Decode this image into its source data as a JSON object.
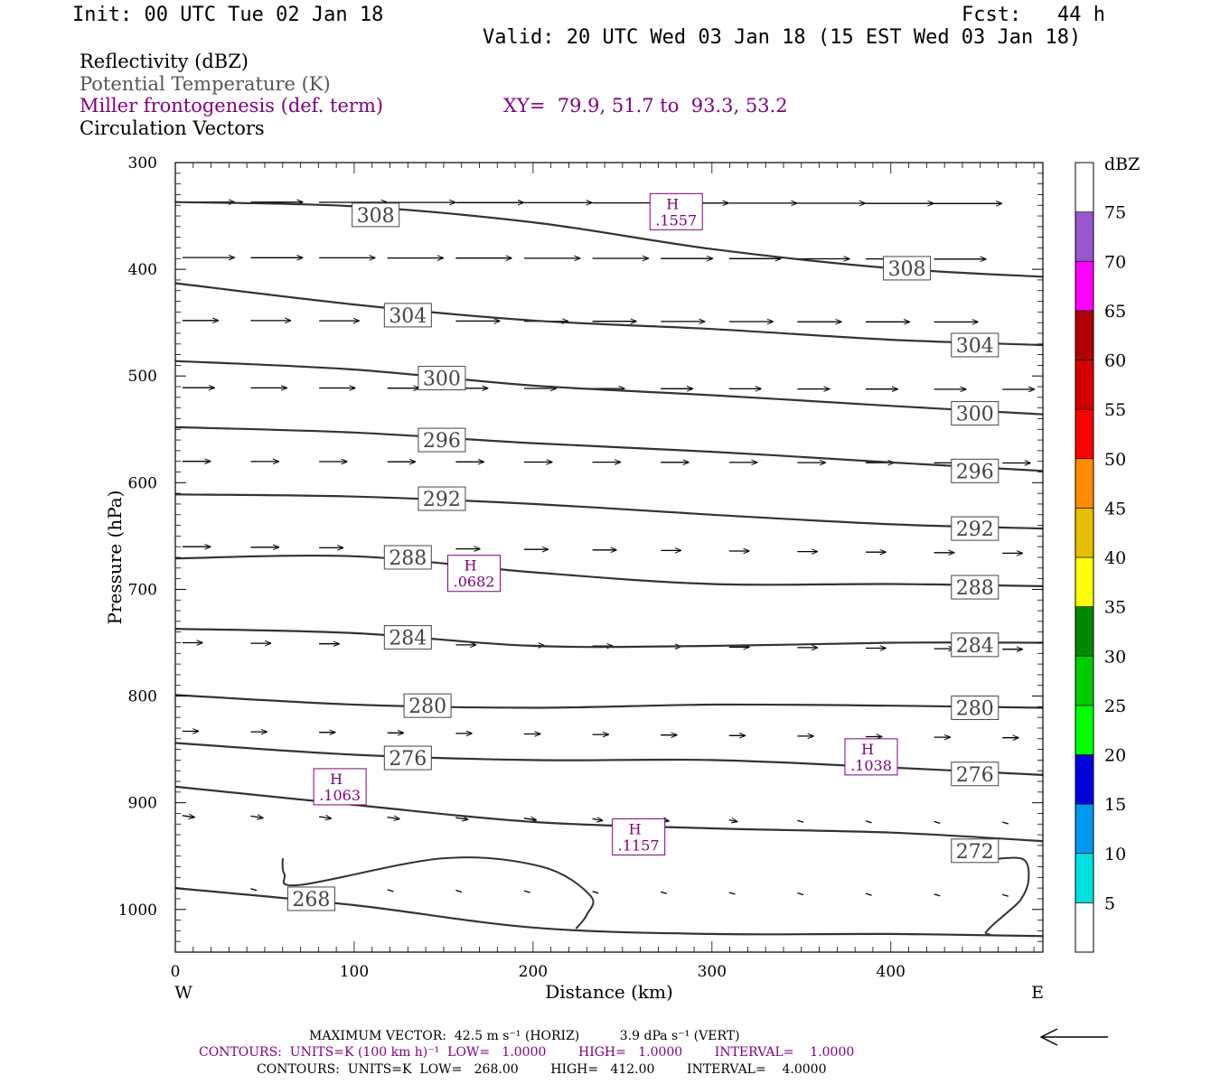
{
  "header": {
    "init": "Init: 00 UTC Tue 02 Jan 18",
    "fcst": "Fcst:   44 h",
    "valid": "Valid: 20 UTC Wed 03 Jan 18 (15 EST Wed 03 Jan 18)"
  },
  "legend": {
    "line1": "Reflectivity (dBZ)",
    "line2": "Potential Temperature (K)",
    "line3": "Miller frontogenesis (def. term)",
    "xy": "XY=  79.9, 51.7 to  93.3, 53.2",
    "line4": "Circulation Vectors"
  },
  "colors": {
    "theta": "#333333",
    "purple": "#800080",
    "colorbar": [
      "#ffffff",
      "#00e0e0",
      "#0099ee",
      "#0000dd",
      "#00ff00",
      "#00cc00",
      "#008800",
      "#ffff00",
      "#e6bf00",
      "#ff8c00",
      "#ff0000",
      "#d40000",
      "#b00000",
      "#ff00ff",
      "#9955cc",
      "#ffffff"
    ]
  },
  "footer": {
    "max_vector": "MAXIMUM VECTOR:  42.5 m s⁻¹ (HORIZ)          3.9 dPa s⁻¹ (VERT)",
    "contours1": "CONTOURS:  UNITS=K (100 km h)⁻¹  LOW=   1.0000        HIGH=   1.0000        INTERVAL=    1.0000",
    "contours2": "CONTOURS:  UNITS=K  LOW=   268.00        HIGH=   412.00        INTERVAL=    4.0000"
  },
  "chart_data": {
    "type": "line",
    "xlabel": "Distance (km)",
    "ylabel": "Pressure (hPa)",
    "xlim": [
      0,
      485
    ],
    "ylim": [
      1040,
      300
    ],
    "x_ticks": [
      0,
      100,
      200,
      300,
      400
    ],
    "y_ticks": [
      300,
      400,
      500,
      600,
      700,
      800,
      900,
      1000
    ],
    "x_end_labels": {
      "left": "W",
      "right": "E"
    },
    "theta_contours": [
      {
        "label": "308",
        "x": [
          0,
          100,
          200,
          300,
          400,
          485
        ],
        "p": [
          337,
          341,
          356,
          381,
          399,
          407
        ],
        "label_at": [
          [
            112,
            349
          ],
          [
            409,
            399
          ]
        ]
      },
      {
        "label": "304",
        "x": [
          0,
          100,
          200,
          300,
          400,
          485
        ],
        "p": [
          413,
          433,
          448,
          456,
          466,
          471
        ],
        "label_at": [
          [
            130,
            443
          ],
          [
            447,
            471
          ]
        ]
      },
      {
        "label": "300",
        "x": [
          0,
          100,
          200,
          300,
          400,
          485
        ],
        "p": [
          486,
          494,
          509,
          518,
          528,
          536
        ],
        "label_at": [
          [
            149,
            502
          ],
          [
            447,
            535
          ]
        ]
      },
      {
        "label": "296",
        "x": [
          0,
          100,
          200,
          300,
          400,
          485
        ],
        "p": [
          548,
          553,
          563,
          571,
          581,
          589
        ],
        "label_at": [
          [
            149,
            560
          ],
          [
            447,
            589
          ]
        ]
      },
      {
        "label": "292",
        "x": [
          0,
          100,
          200,
          300,
          400,
          485
        ],
        "p": [
          611,
          613,
          620,
          630,
          639,
          643
        ],
        "label_at": [
          [
            149,
            615
          ],
          [
            447,
            643
          ]
        ]
      },
      {
        "label": "288",
        "x": [
          0,
          100,
          200,
          300,
          400,
          485
        ],
        "p": [
          671,
          669,
          684,
          695,
          695,
          697
        ],
        "label_at": [
          [
            130,
            670
          ],
          [
            447,
            698
          ]
        ]
      },
      {
        "label": "284",
        "x": [
          0,
          100,
          200,
          300,
          400,
          485
        ],
        "p": [
          737,
          741,
          753,
          753,
          750,
          750
        ],
        "label_at": [
          [
            130,
            745
          ],
          [
            447,
            752
          ]
        ]
      },
      {
        "label": "280",
        "x": [
          0,
          100,
          200,
          300,
          400,
          485
        ],
        "p": [
          799,
          808,
          811,
          808,
          809,
          811
        ],
        "label_at": [
          [
            141,
            809
          ],
          [
            447,
            811
          ]
        ]
      },
      {
        "label": "276",
        "x": [
          0,
          100,
          200,
          300,
          400,
          485
        ],
        "p": [
          844,
          855,
          860,
          860,
          867,
          874
        ],
        "label_at": [
          [
            130,
            858
          ],
          [
            447,
            873
          ]
        ]
      },
      {
        "label": "272",
        "x": [
          0,
          100,
          200,
          300,
          400,
          485
        ],
        "p": [
          885,
          902,
          918,
          924,
          928,
          936
        ],
        "label_at": [
          [
            447,
            945
          ]
        ]
      },
      {
        "label": "268",
        "x": [
          0,
          100,
          200,
          300,
          400,
          485
        ],
        "p": [
          980,
          996,
          1017,
          1023,
          1023,
          1025
        ],
        "label_at": [
          [
            76,
            990
          ]
        ]
      }
    ],
    "frontogenesis_contours": [
      {
        "x": [
          60,
          61,
          70,
          150,
          205,
          232,
          230,
          224
        ],
        "p": [
          952,
          967,
          977,
          952,
          960,
          987,
          1005,
          1018
        ]
      },
      {
        "x": [
          456,
          474,
          477,
          473,
          465,
          458,
          455,
          453,
          456
        ],
        "p": [
          953,
          953,
          972,
          990,
          1003,
          1013,
          1018,
          1022,
          1024
        ]
      }
    ],
    "highs": [
      {
        "label": "H",
        "value": ".1557",
        "x": 280,
        "p": 346
      },
      {
        "label": "H",
        "value": ".0682",
        "x": 167,
        "p": 685
      },
      {
        "label": "H",
        "value": ".1038",
        "x": 389,
        "p": 857
      },
      {
        "label": "H",
        "value": ".1063",
        "x": 92,
        "p": 885
      },
      {
        "label": "H",
        "value": ".1157",
        "x": 259,
        "p": 932
      }
    ],
    "vector_rows": [
      {
        "p": 337,
        "dx": [
          26,
          26,
          34,
          34,
          34,
          34,
          34,
          34,
          34,
          34,
          34,
          34,
          34
        ]
      },
      {
        "p": 389,
        "dx": [
          26,
          26,
          28,
          28,
          28,
          28,
          28,
          26,
          26,
          26,
          26,
          26,
          26
        ]
      },
      {
        "p": 448,
        "dx": [
          18,
          20,
          20,
          22,
          22,
          22,
          22,
          22,
          22,
          22,
          22,
          22,
          22
        ]
      },
      {
        "p": 511,
        "dx": [
          16,
          18,
          18,
          16,
          16,
          16,
          16,
          16,
          16,
          16,
          16,
          16,
          16
        ]
      },
      {
        "p": 580,
        "dx": [
          14,
          14,
          14,
          14,
          14,
          14,
          14,
          14,
          14,
          14,
          14,
          14,
          14
        ]
      },
      {
        "p": 660,
        "dx": [
          14,
          14,
          12,
          12,
          12,
          12,
          12,
          10,
          10,
          10,
          10,
          10,
          10
        ]
      },
      {
        "p": 750,
        "dx": [
          10,
          10,
          10,
          10,
          10,
          10,
          10,
          10,
          10,
          10,
          10,
          10,
          10
        ]
      },
      {
        "p": 833,
        "dx": [
          8,
          8,
          8,
          8,
          8,
          8,
          8,
          8,
          8,
          8,
          8,
          8,
          8
        ]
      },
      {
        "p": 912,
        "dx": [
          6,
          6,
          6,
          6,
          6,
          6,
          5,
          4,
          4,
          3,
          3,
          3,
          3
        ]
      },
      {
        "p": 980,
        "dx": [
          3,
          3,
          3,
          3,
          3,
          3,
          3,
          3,
          3,
          3,
          3,
          3,
          3
        ]
      }
    ],
    "colorbar": {
      "title": "dBZ",
      "levels": [
        "5",
        "10",
        "15",
        "20",
        "25",
        "30",
        "35",
        "40",
        "45",
        "50",
        "55",
        "60",
        "65",
        "70",
        "75"
      ]
    }
  }
}
